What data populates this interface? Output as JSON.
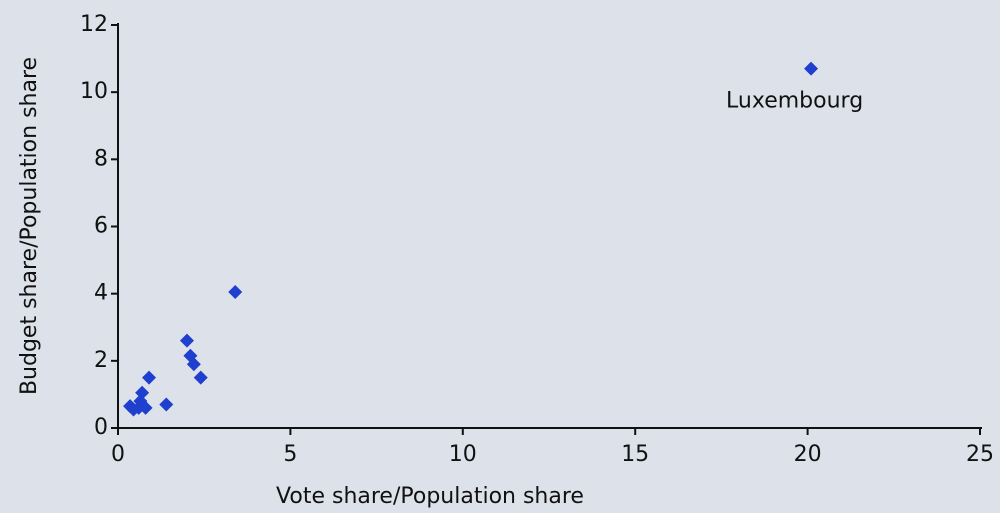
{
  "chart_data": {
    "type": "scatter",
    "x_label": "Vote share/Population share",
    "y_label": "Budget share/Population share",
    "color": "#1f3fcf",
    "xlim": [
      0,
      25
    ],
    "ylim": [
      0,
      12
    ],
    "xticks": [
      0,
      5,
      10,
      15,
      20,
      25
    ],
    "yticks": [
      0,
      2,
      4,
      6,
      8,
      10,
      12
    ],
    "grid": false,
    "x": [
      20.1,
      3.4,
      2.0,
      2.1,
      2.2,
      2.4,
      0.9,
      0.7,
      1.4,
      0.35,
      0.6,
      0.8,
      0.65,
      0.45
    ],
    "values": [
      10.7,
      4.05,
      2.6,
      2.15,
      1.9,
      1.5,
      1.5,
      1.05,
      0.7,
      0.65,
      0.6,
      0.6,
      0.8,
      0.55
    ],
    "annotations": [
      {
        "text": "Luxembourg",
        "point": 0
      }
    ]
  }
}
